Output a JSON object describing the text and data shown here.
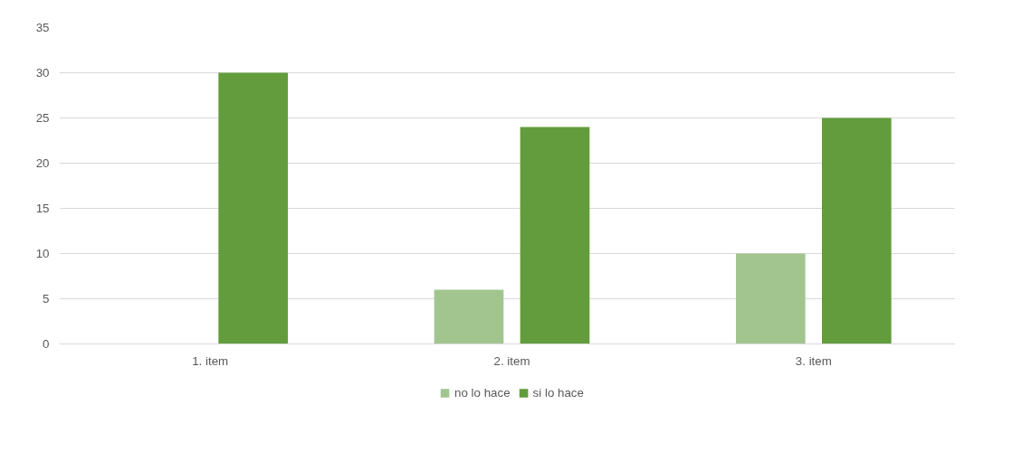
{
  "chart_data": {
    "type": "bar",
    "categories": [
      "1. item",
      "2. item",
      "3. item"
    ],
    "series": [
      {
        "name": "no lo hace",
        "color": "#a2c590",
        "values": [
          0,
          6,
          10
        ]
      },
      {
        "name": "si lo hace",
        "color": "#629c3c",
        "values": [
          30,
          24,
          25
        ]
      }
    ],
    "ylim": [
      0,
      35
    ],
    "yticks": [
      0,
      5,
      10,
      15,
      20,
      25,
      30,
      35
    ],
    "grid": "y",
    "legend": "bottom"
  }
}
